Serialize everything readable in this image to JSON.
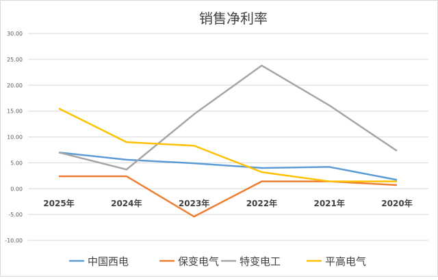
{
  "chart_data": {
    "type": "line",
    "title": "销售净利率",
    "xlabel": "",
    "ylabel": "",
    "categories": [
      "2025年",
      "2024年",
      "2023年",
      "2022年",
      "2021年",
      "2020年"
    ],
    "ylim": [
      -10,
      30
    ],
    "yticks": [
      "30.00",
      "25.00",
      "20.00",
      "15.00",
      "10.00",
      "5.00",
      "0.00",
      "-5.00",
      "-10.00"
    ],
    "ytick_values": [
      30,
      25,
      20,
      15,
      10,
      5,
      0,
      -5,
      -10
    ],
    "grid": true,
    "legend_position": "bottom",
    "series": [
      {
        "name": "中国西电",
        "color": "#5b9bd5",
        "values": [
          7.0,
          5.6,
          4.9,
          4.0,
          4.2,
          1.7
        ]
      },
      {
        "name": "保变电气",
        "color": "#ed7d31",
        "values": [
          2.4,
          2.4,
          -5.4,
          1.4,
          1.4,
          0.7
        ]
      },
      {
        "name": "特变电工",
        "color": "#a5a5a5",
        "values": [
          7.0,
          3.7,
          14.4,
          23.8,
          16.1,
          7.3
        ]
      },
      {
        "name": "平高电气",
        "color": "#ffc000",
        "values": [
          15.5,
          9.0,
          8.3,
          3.2,
          1.4,
          1.4
        ]
      }
    ]
  }
}
